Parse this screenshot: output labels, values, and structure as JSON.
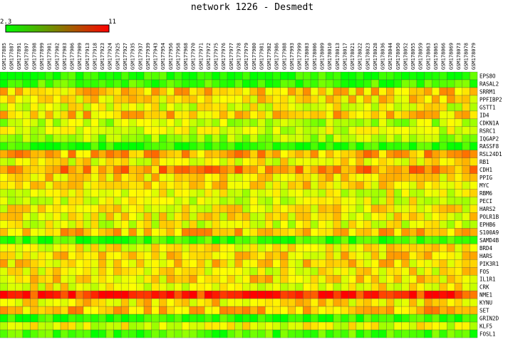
{
  "chart_data": {
    "type": "heatmap",
    "title": "network 1226 - Desmedt",
    "scale": {
      "min_label": "2.3",
      "max_label": "11",
      "min": 2.3,
      "max": 11,
      "low_color": "#00ff00",
      "high_color": "#ff0000"
    },
    "columns": [
      "GSM177885",
      "GSM177887",
      "GSM177891",
      "GSM177897",
      "GSM177898",
      "GSM177899",
      "GSM177901",
      "GSM177902",
      "GSM177903",
      "GSM177906",
      "GSM177909",
      "GSM177913",
      "GSM177918",
      "GSM177923",
      "GSM177924",
      "GSM177925",
      "GSM177927",
      "GSM177935",
      "GSM177937",
      "GSM177939",
      "GSM177943",
      "GSM177954",
      "GSM177956",
      "GSM177958",
      "GSM177968",
      "GSM177970",
      "GSM177971",
      "GSM177972",
      "GSM177975",
      "GSM177976",
      "GSM177977",
      "GSM177978",
      "GSM177979",
      "GSM177980",
      "GSM177981",
      "GSM177982",
      "GSM177986",
      "GSM177988",
      "GSM177993",
      "GSM177999",
      "GSM178003",
      "GSM178006",
      "GSM178009",
      "GSM178010",
      "GSM178013",
      "GSM178017",
      "GSM178021",
      "GSM178022",
      "GSM178023",
      "GSM178028",
      "GSM178036",
      "GSM178044",
      "GSM178050",
      "GSM178052",
      "GSM178055",
      "GSM178059",
      "GSM178063",
      "GSM178065",
      "GSM178066",
      "GSM178069",
      "GSM178073",
      "GSM178078",
      "GSM178079"
    ],
    "rows": [
      "EPS8O",
      "RASAL2",
      "SRRM1",
      "PPFIBP2",
      "GSTT1",
      "ID4",
      "CDKN1A",
      "RSRC1",
      "IQGAP2",
      "RASSF8",
      "RSL24D1",
      "RB1",
      "CDH1",
      "PPIG",
      "MYC",
      "RBM6",
      "PECI",
      "HARS2",
      "POLR1B",
      "EPHB6",
      "S100A9",
      "SAMD4B",
      "BRD4",
      "HARS",
      "PIK3R1",
      "FOS",
      "IL1R1",
      "CRK",
      "NME1",
      "KYNU",
      "SET",
      "GRIN2D",
      "KLF5",
      "FOSL1"
    ],
    "row_levels": [
      0.05,
      0.12,
      0.6,
      0.55,
      0.45,
      0.6,
      0.35,
      0.4,
      0.3,
      0.05,
      0.65,
      0.5,
      0.7,
      0.55,
      0.55,
      0.45,
      0.45,
      0.5,
      0.5,
      0.45,
      0.6,
      0.1,
      0.5,
      0.55,
      0.55,
      0.5,
      0.55,
      0.5,
      0.92,
      0.55,
      0.62,
      0.08,
      0.45,
      0.15
    ]
  }
}
